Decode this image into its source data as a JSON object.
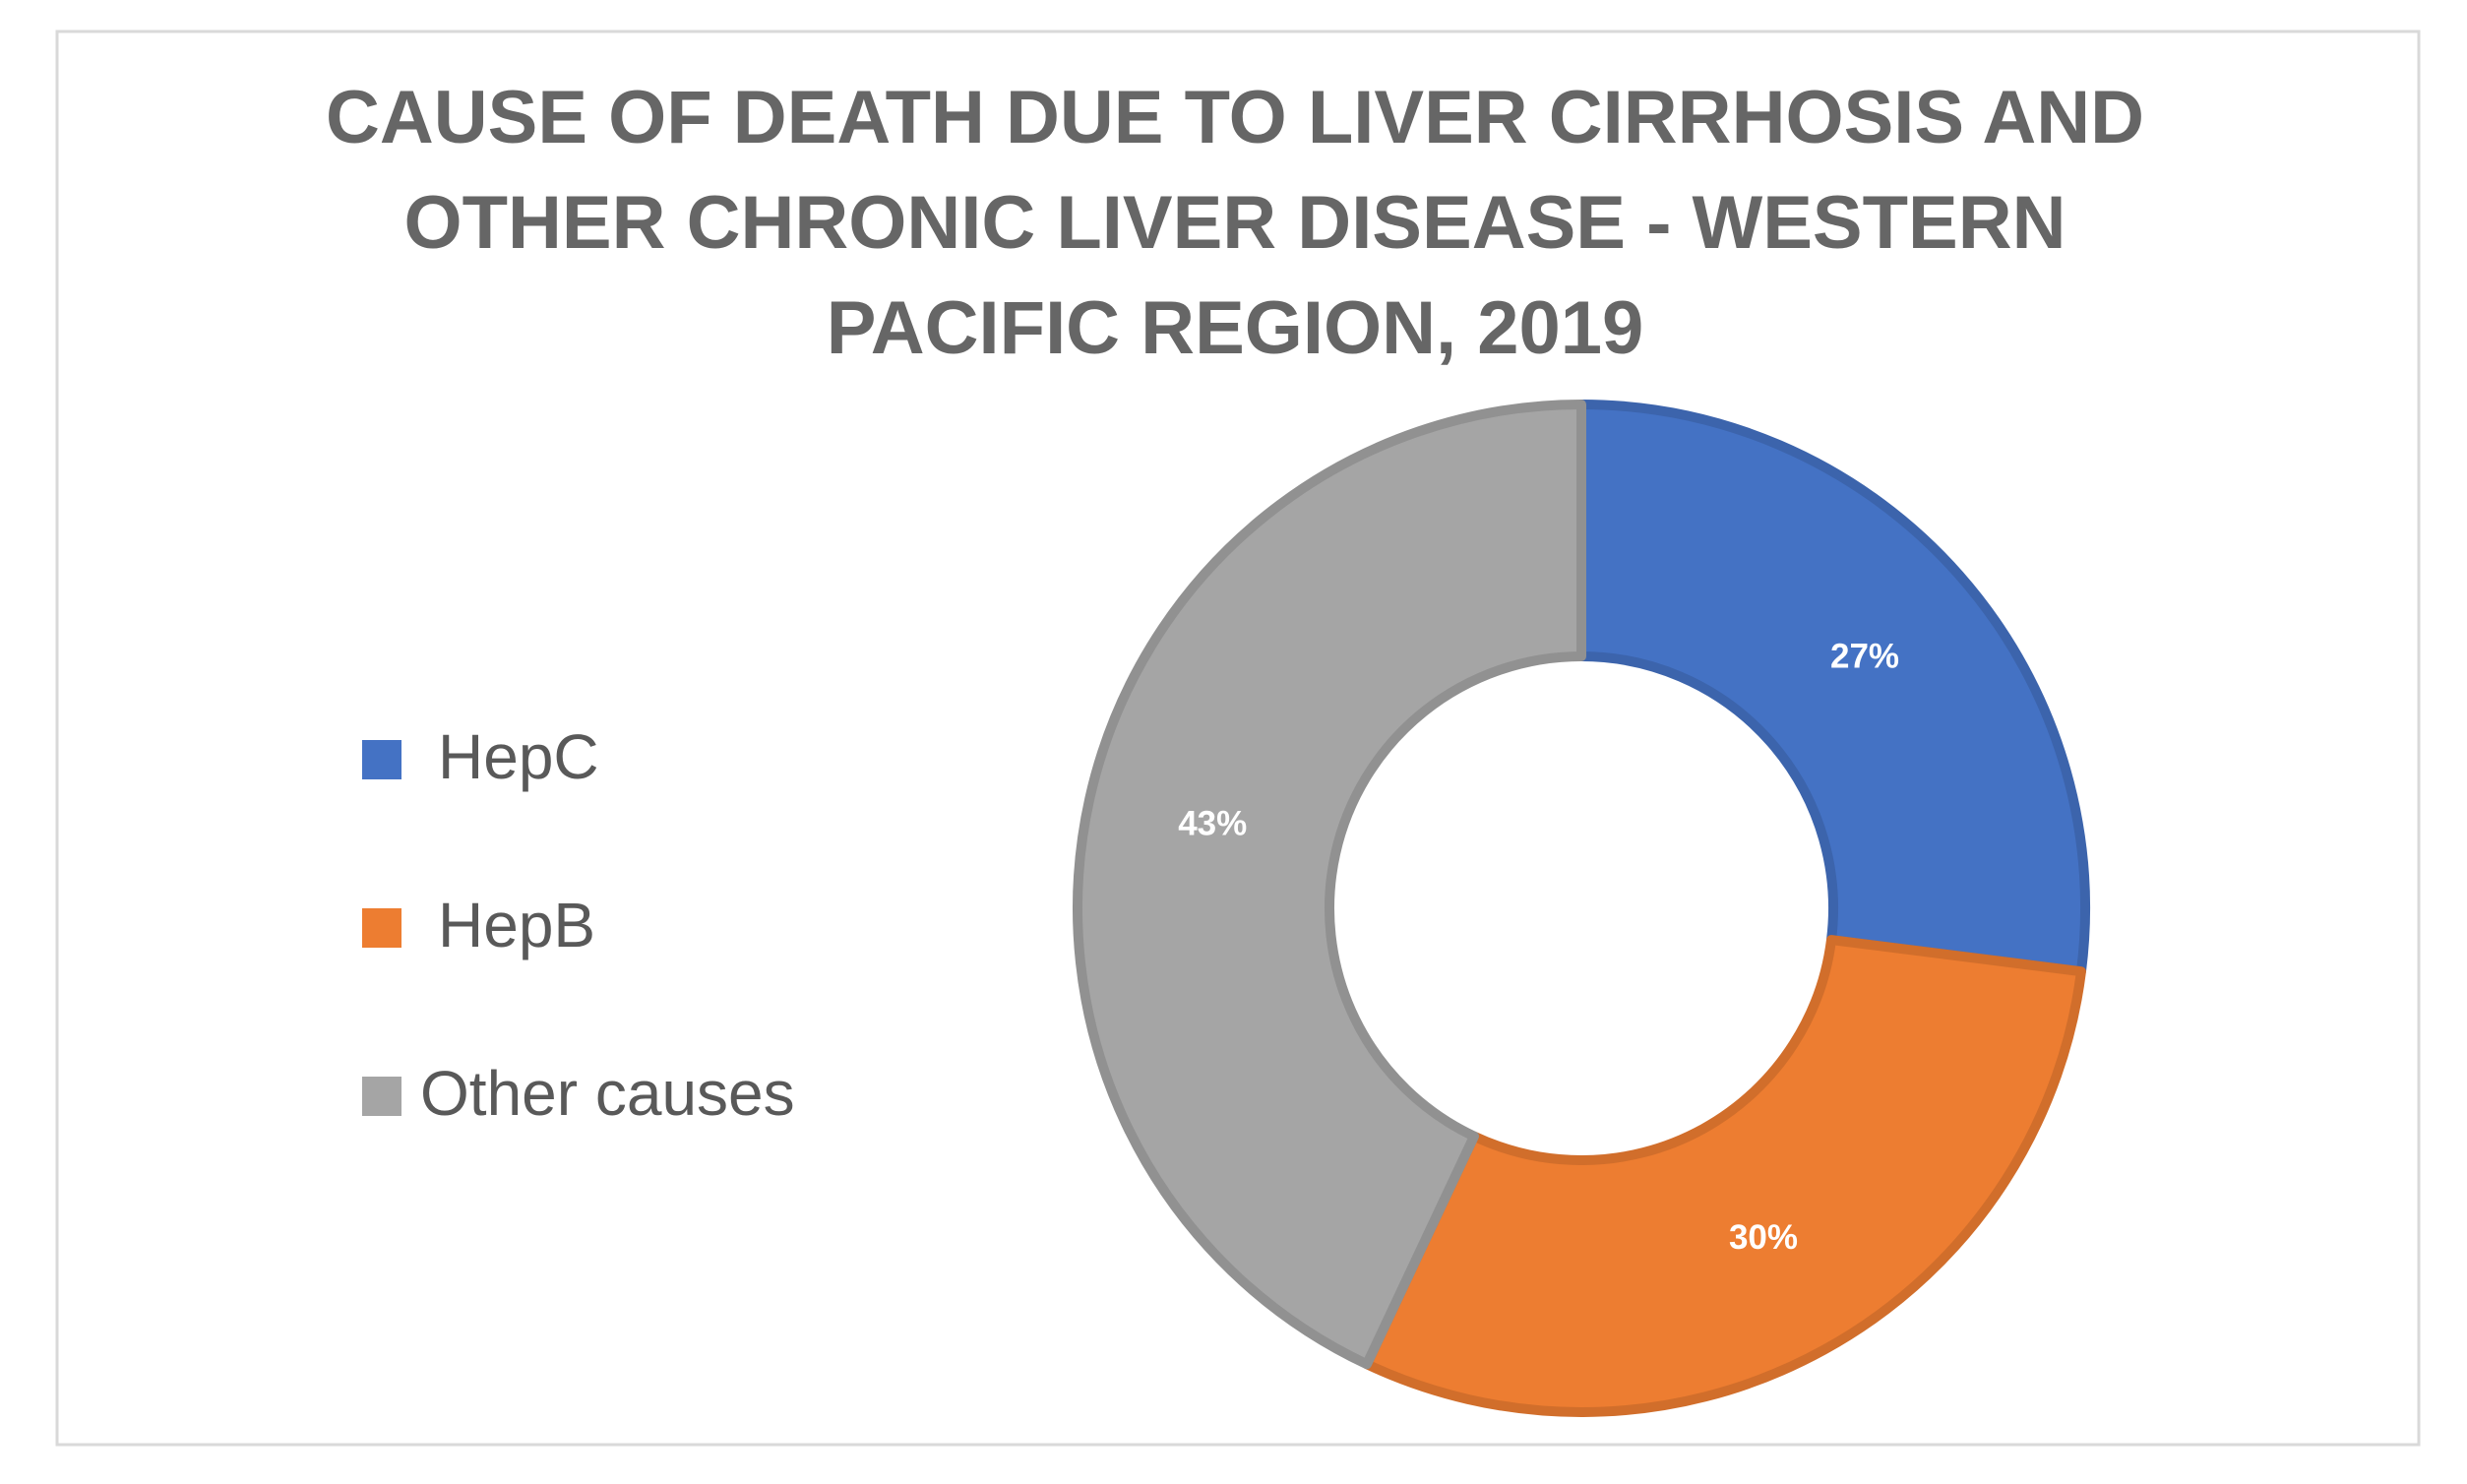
{
  "chart_data": {
    "type": "donut",
    "title_lines": [
      "CAUSE OF DEATH DUE TO LIVER CIRRHOSIS AND",
      "OTHER CHRONIC LIVER DISEASE - WESTERN",
      "PACIFIC REGION, 2019"
    ],
    "categories": [
      "HepC",
      "HepB",
      "Other causes"
    ],
    "values": [
      27,
      30,
      43
    ],
    "value_labels": [
      "27%",
      "30%",
      "43%"
    ],
    "colors": [
      "#4472c4",
      "#ed7d31",
      "#a5a5a5"
    ],
    "legend": "left"
  }
}
